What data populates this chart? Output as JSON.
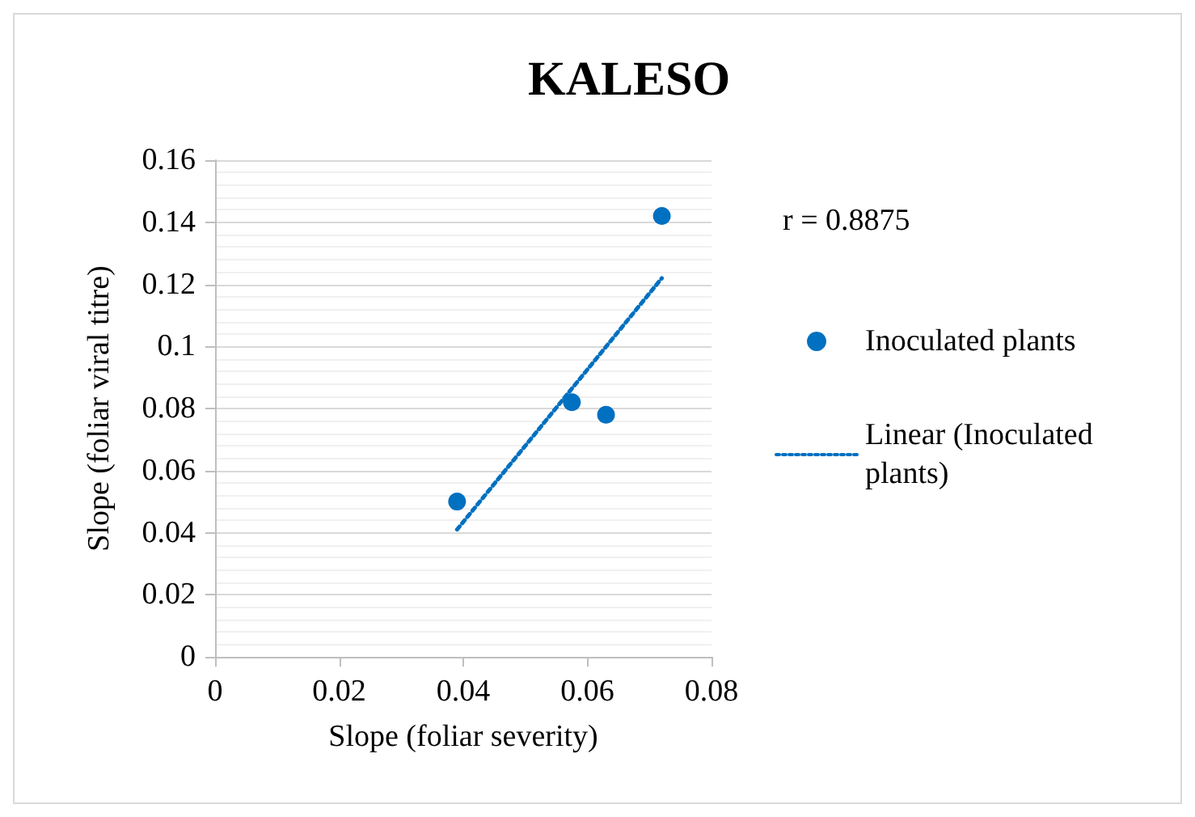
{
  "chart_data": {
    "type": "scatter",
    "title": "KALESO",
    "xlabel": "Slope (foliar severity)",
    "ylabel": "Slope (foliar viral titre)",
    "xlim": [
      0,
      0.08
    ],
    "xticks": [
      0,
      0.02,
      0.04,
      0.06,
      0.08
    ],
    "ylim": [
      0,
      0.16
    ],
    "yticks": [
      0,
      0.02,
      0.04,
      0.06,
      0.08,
      0.1,
      0.12,
      0.14,
      0.16
    ],
    "series": [
      {
        "name": "Inoculated plants",
        "color": "#0070c0",
        "x": [
          0.039,
          0.0575,
          0.063,
          0.072
        ],
        "values": [
          0.05,
          0.082,
          0.078,
          0.142
        ],
        "marker": "circle"
      },
      {
        "name": "Linear (Inoculated plants)",
        "type": "line",
        "color": "#0070c0",
        "x": [
          0.039,
          0.072
        ],
        "values": [
          0.041,
          0.122
        ],
        "line_style": "dotted",
        "marker": "none"
      }
    ],
    "annotations": [
      "r = 0.8875"
    ],
    "grid": "y",
    "legend": "right"
  }
}
